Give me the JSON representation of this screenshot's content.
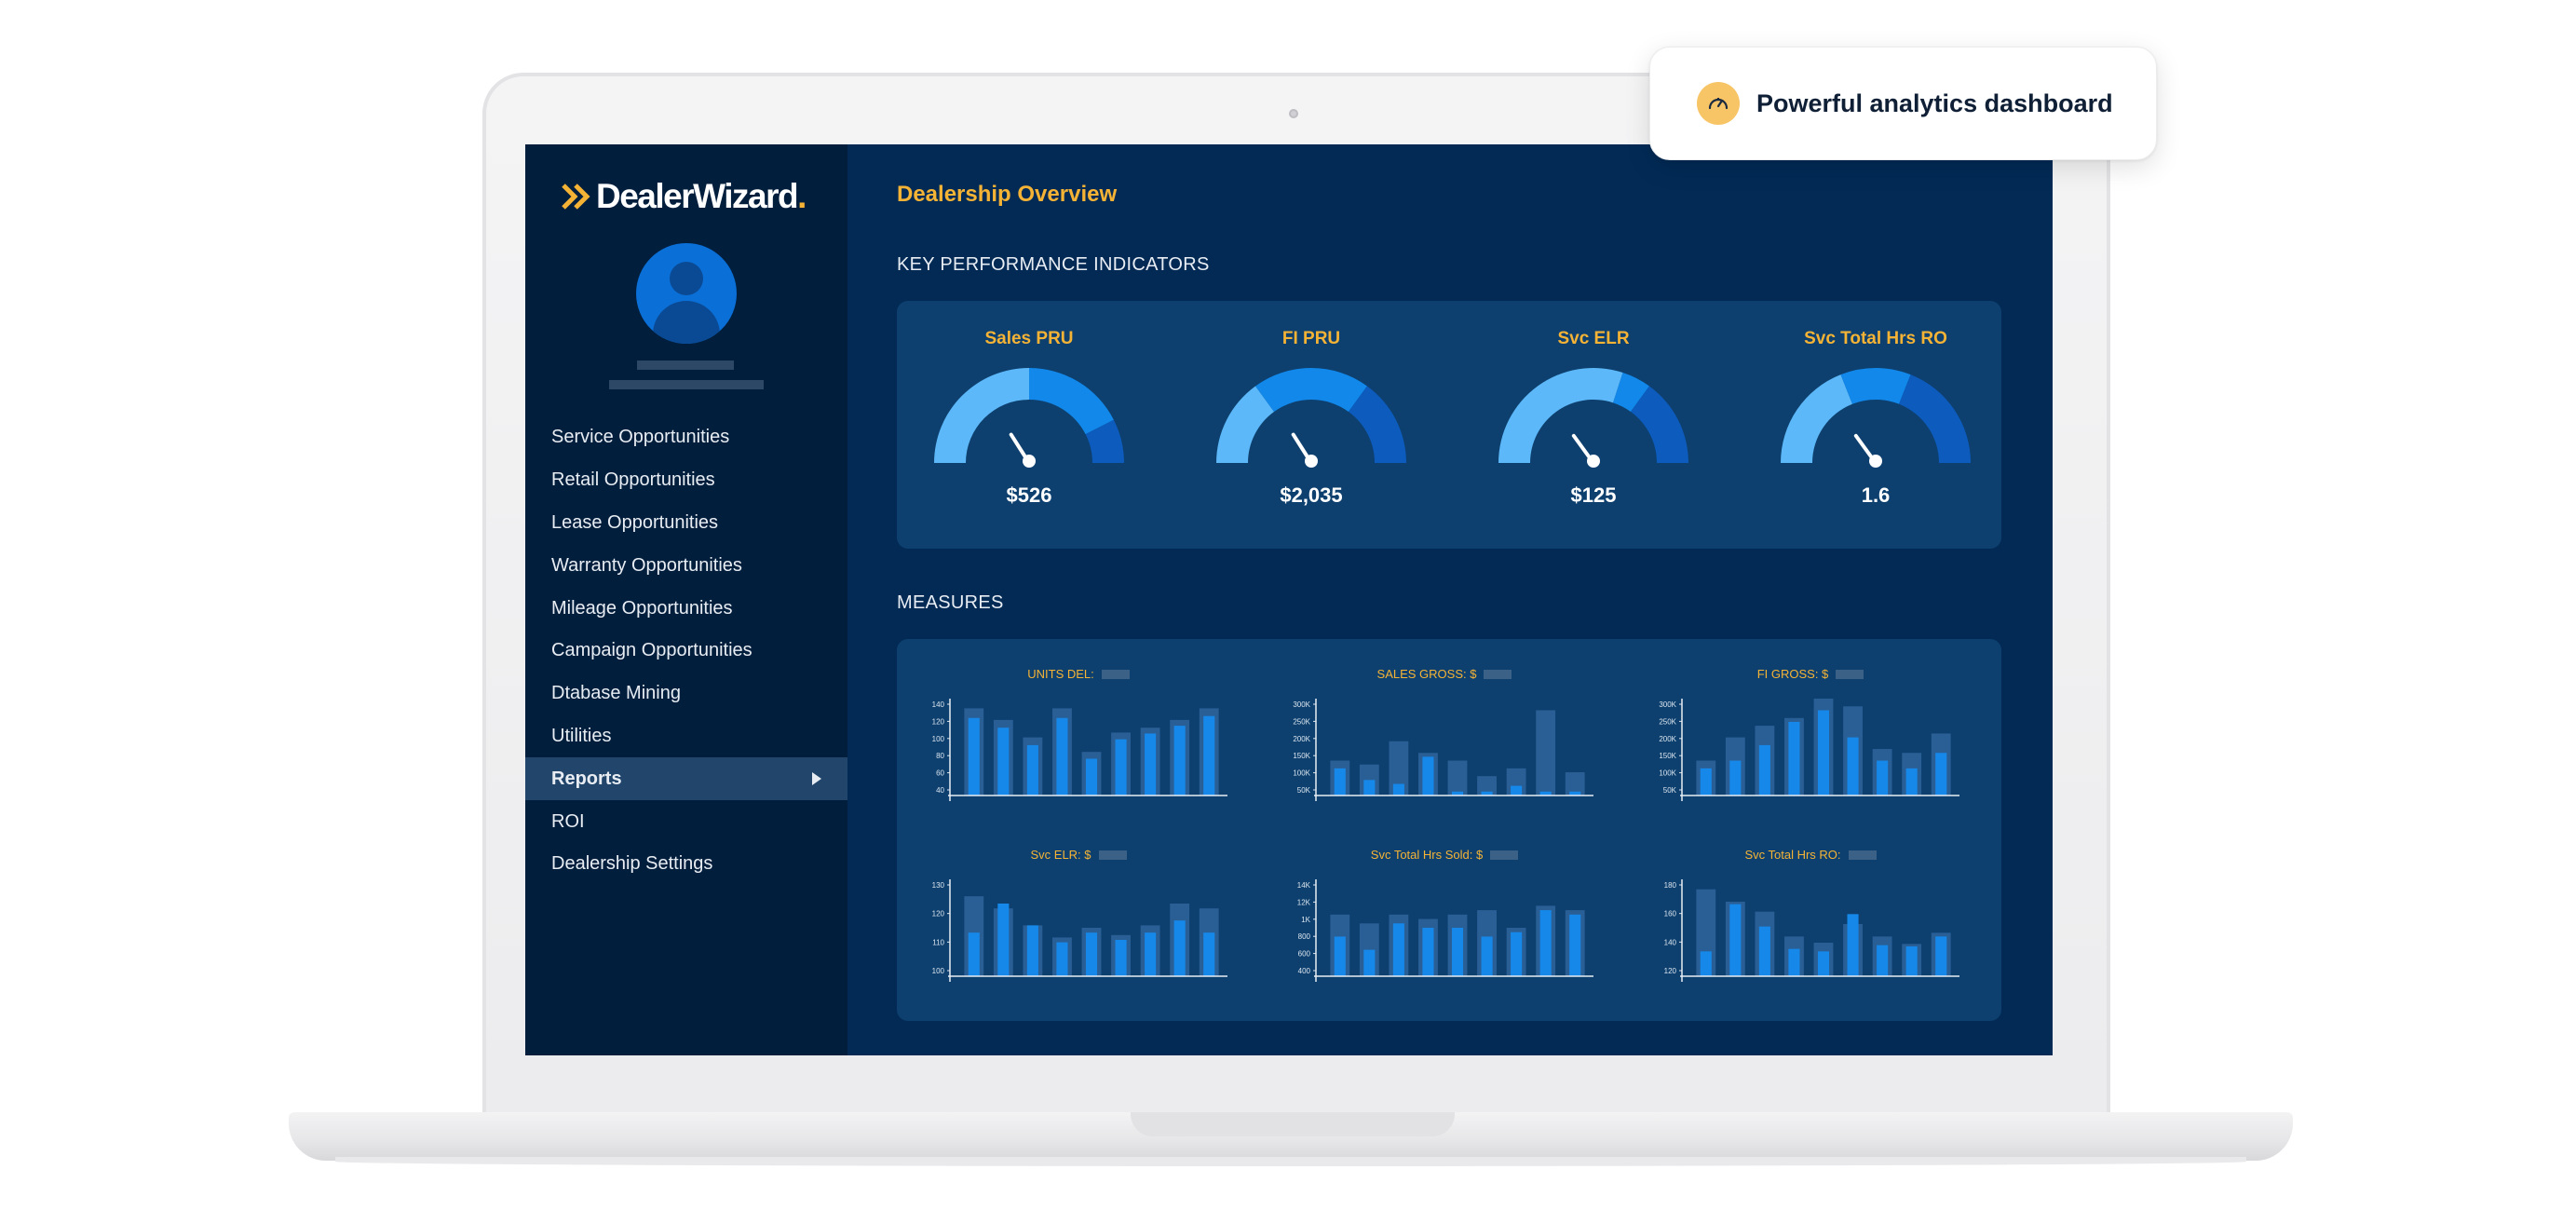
{
  "callout": {
    "text": "Powerful analytics dashboard",
    "icon": "speedometer-icon"
  },
  "brand": {
    "name": "DealerWizard",
    "dot": ".",
    "accent": "#f5b336"
  },
  "sidebar": {
    "items": [
      {
        "label": "Service Opportunities"
      },
      {
        "label": "Retail Opportunities"
      },
      {
        "label": "Lease Opportunities"
      },
      {
        "label": "Warranty Opportunities"
      },
      {
        "label": "Mileage Opportunities"
      },
      {
        "label": "Campaign Opportunities"
      },
      {
        "label": "Dtabase Mining"
      },
      {
        "label": "Utilities"
      },
      {
        "label": "Reports",
        "active": true
      },
      {
        "label": "ROI"
      },
      {
        "label": "Dealership Settings"
      }
    ]
  },
  "main": {
    "title": "Dealership Overview",
    "kpi_section": "KEY PERFORMANCE INDICATORS",
    "measures_section": "MEASURES"
  },
  "kpis": [
    {
      "label": "Sales PRU",
      "value": "$526",
      "segments": [
        0.5,
        0.35,
        0.15
      ],
      "needle": 0.32
    },
    {
      "label": "FI PRU",
      "value": "$2,035",
      "segments": [
        0.3,
        0.4,
        0.3
      ],
      "needle": 0.32
    },
    {
      "label": "Svc ELR",
      "value": "$125",
      "segments": [
        0.6,
        0.1,
        0.3
      ],
      "needle": 0.3
    },
    {
      "label": "Svc Total Hrs RO",
      "value": "1.6",
      "segments": [
        0.38,
        0.24,
        0.38
      ],
      "needle": 0.3
    }
  ],
  "chart_data": [
    {
      "type": "bar",
      "title": "UNITS DEL:",
      "yticks": [
        "140",
        "120",
        "100",
        "80",
        "60",
        "40"
      ],
      "ylim": [
        40,
        140
      ],
      "series": [
        {
          "values": [
            130,
            118,
            100,
            130,
            85,
            105,
            110,
            118,
            130
          ]
        },
        {
          "values": [
            120,
            110,
            92,
            120,
            78,
            98,
            104,
            112,
            122
          ]
        }
      ]
    },
    {
      "type": "bar",
      "title": "SALES GROSS: $",
      "yticks": [
        "300K",
        "250K",
        "200K",
        "150K",
        "100K",
        "50K"
      ],
      "ylim": [
        50,
        300
      ],
      "series": [
        {
          "values": [
            140,
            130,
            190,
            160,
            140,
            100,
            120,
            270,
            110
          ]
        },
        {
          "values": [
            120,
            90,
            80,
            150,
            60,
            60,
            75,
            60,
            60
          ]
        }
      ]
    },
    {
      "type": "bar",
      "title": "FI GROSS: $",
      "yticks": [
        "300K",
        "250K",
        "200K",
        "150K",
        "100K",
        "50K"
      ],
      "ylim": [
        50,
        300
      ],
      "series": [
        {
          "values": [
            140,
            200,
            230,
            250,
            300,
            280,
            170,
            160,
            210
          ]
        },
        {
          "values": [
            120,
            140,
            180,
            240,
            270,
            200,
            140,
            120,
            160
          ]
        }
      ]
    },
    {
      "type": "bar",
      "title": "Svc ELR: $",
      "yticks": [
        "130",
        "120",
        "110",
        "100"
      ],
      "ylim": [
        92,
        132
      ],
      "series": [
        {
          "values": [
            125,
            120,
            113,
            108,
            112,
            109,
            113,
            122,
            120
          ]
        },
        {
          "values": [
            110,
            122,
            113,
            106,
            110,
            107,
            110,
            115,
            110
          ]
        }
      ]
    },
    {
      "type": "bar",
      "title": "Svc Total Hrs Sold: $",
      "yticks": [
        "14K",
        "12K",
        "1K",
        "800",
        "600",
        "400"
      ],
      "ylim": [
        400,
        1500
      ],
      "series": [
        {
          "values": [
            1100,
            1000,
            1100,
            1050,
            1100,
            1150,
            950,
            1200,
            1150
          ]
        },
        {
          "values": [
            850,
            700,
            1000,
            950,
            950,
            850,
            900,
            1150,
            1100
          ]
        }
      ]
    },
    {
      "type": "bar",
      "title": "Svc Total Hrs RO:",
      "yticks": [
        "180",
        "160",
        "140",
        "120"
      ],
      "ylim": [
        108,
        186
      ],
      "series": [
        {
          "values": [
            178,
            168,
            160,
            140,
            135,
            150,
            140,
            134,
            143
          ]
        },
        {
          "values": [
            128,
            166,
            148,
            130,
            128,
            158,
            133,
            132,
            140
          ]
        }
      ]
    }
  ]
}
